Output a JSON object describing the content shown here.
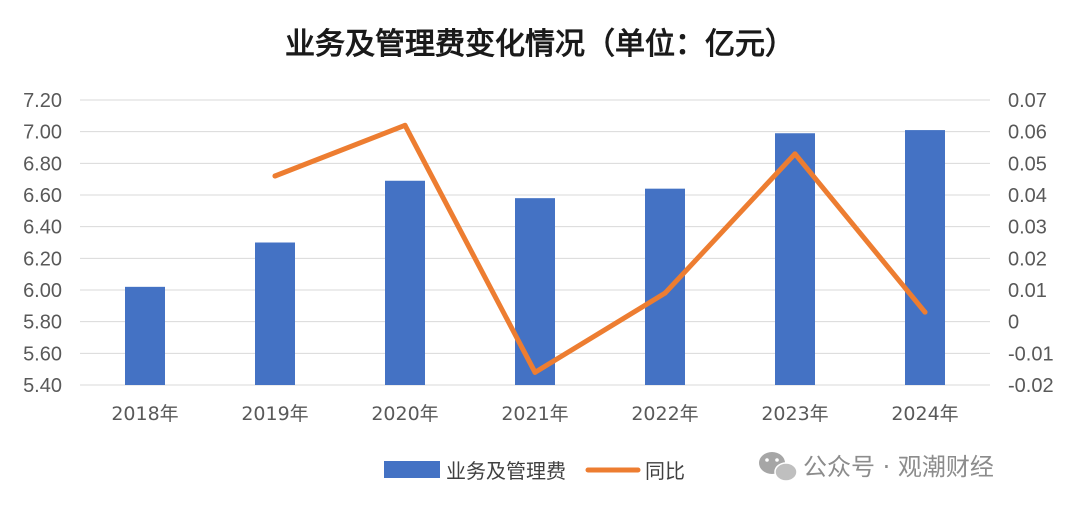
{
  "chart_data": {
    "type": "bar",
    "title": "业务及管理费变化情况（单位：亿元）",
    "categories": [
      "2018年",
      "2019年",
      "2020年",
      "2021年",
      "2022年",
      "2023年",
      "2024年"
    ],
    "series": [
      {
        "name": "业务及管理费",
        "type": "bar",
        "axis": "left",
        "color": "#4472C4",
        "values": [
          6.02,
          6.3,
          6.69,
          6.58,
          6.64,
          6.99,
          7.01
        ]
      },
      {
        "name": "同比",
        "type": "line",
        "axis": "right",
        "color": "#ED7D31",
        "values": [
          null,
          0.046,
          0.062,
          -0.016,
          0.009,
          0.053,
          0.003
        ]
      }
    ],
    "y_left": {
      "ylim": [
        5.4,
        7.2
      ],
      "ticks": [
        "7.20",
        "7.00",
        "6.80",
        "6.60",
        "6.40",
        "6.20",
        "6.00",
        "5.80",
        "5.60",
        "5.40"
      ]
    },
    "y_right": {
      "ylim": [
        -0.02,
        0.07
      ],
      "ticks": [
        "0.07",
        "0.06",
        "0.05",
        "0.04",
        "0.03",
        "0.02",
        "0.01",
        "0",
        "-0.01",
        "-0.02"
      ]
    },
    "grid": true,
    "legend_position": "bottom"
  },
  "watermark": {
    "text": "公众号 · 观潮财经",
    "icon": "wechat-icon"
  }
}
